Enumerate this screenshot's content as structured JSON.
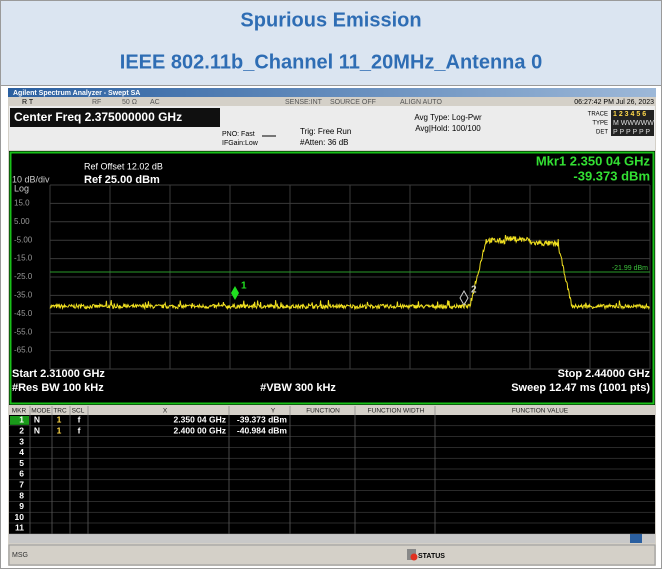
{
  "header": {
    "title": "Spurious Emission",
    "subtitle": "IEEE 802.11b_Channel 11_20MHz_Antenna 0"
  },
  "window_title": "Agilent Spectrum Analyzer - Swept SA",
  "status_row": {
    "mode": "R T",
    "rf": "RF",
    "impedance": "50 Ω",
    "coupling": "AC",
    "sense": "SENSE:INT",
    "source": "SOURCE OFF",
    "align": "ALIGN AUTO",
    "time": "06:27:42 PM Jul 26, 2023"
  },
  "settings": {
    "center_freq": "Center Freq 2.375000000 GHz",
    "pno": "PNO: Fast",
    "ifgain": "IFGain:Low",
    "trig": "Trig: Free Run",
    "atten": "#Atten: 36 dB",
    "avg_type": "Avg Type: Log-Pwr",
    "avg_hold": "Avg|Hold: 100/100",
    "trace_label": "TRACE",
    "trace_value": "1 2 3 4 5 6",
    "type_label": "TYPE",
    "type_value": "M WWWWW",
    "det_label": "DET",
    "det_value": "P P P P P P"
  },
  "graph": {
    "ref_offset": "Ref Offset 12.02 dB",
    "scale": "10 dB/div",
    "ref_level": "Ref 25.00 dBm",
    "log": "Log",
    "marker_freq": "Mkr1 2.350 04 GHz",
    "marker_level": "-39.373 dBm",
    "y_labels": [
      "15.0",
      "5.00",
      "-5.00",
      "-15.0",
      "-25.0",
      "-35.0",
      "-45.0",
      "-55.0",
      "-65.0"
    ],
    "display_line": "-21.99 dBm",
    "marker_ids": [
      "1",
      "2"
    ]
  },
  "footer": {
    "start": "Start 2.31000 GHz",
    "stop": "Stop 2.44000 GHz",
    "rbw": "#Res BW 100 kHz",
    "vbw": "#VBW 300 kHz",
    "sweep": "Sweep  12.47 ms (1001 pts)"
  },
  "table": {
    "headers": [
      "MKR",
      "MODE",
      "TRC",
      "SCL",
      "X",
      "Y",
      "FUNCTION",
      "FUNCTION WIDTH",
      "FUNCTION VALUE"
    ],
    "rows": [
      {
        "mkr": "1",
        "mode": "N",
        "trc": "1",
        "scl": "f",
        "x": "2.350 04 GHz",
        "y": "-39.373 dBm"
      },
      {
        "mkr": "2",
        "mode": "N",
        "trc": "1",
        "scl": "f",
        "x": "2.400 00 GHz",
        "y": "-40.984 dBm"
      },
      {
        "mkr": "3"
      },
      {
        "mkr": "4"
      },
      {
        "mkr": "5"
      },
      {
        "mkr": "6"
      },
      {
        "mkr": "7"
      },
      {
        "mkr": "8"
      },
      {
        "mkr": "9"
      },
      {
        "mkr": "10"
      },
      {
        "mkr": "11"
      }
    ]
  },
  "bottom_bar": {
    "msg": "MSG",
    "status": "STATUS"
  }
}
